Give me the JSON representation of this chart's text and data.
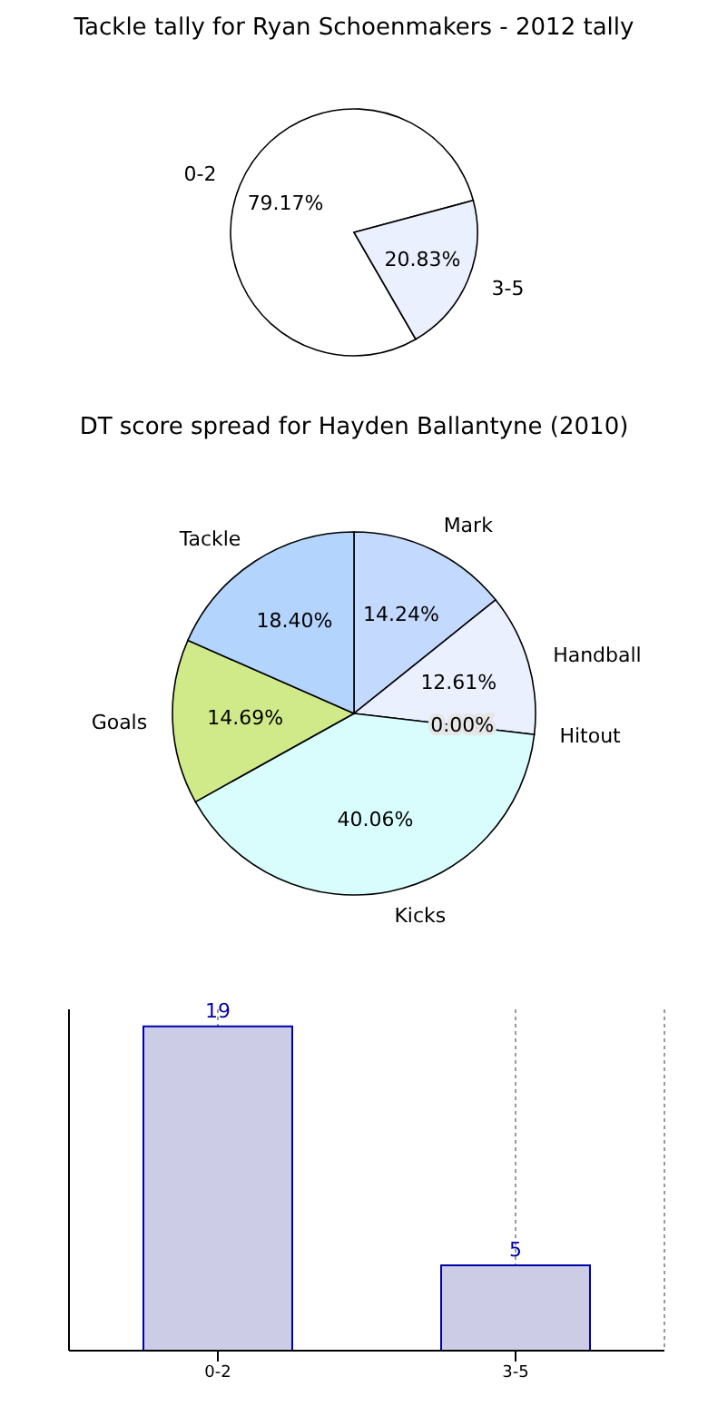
{
  "chart_data": [
    {
      "type": "pie",
      "title": "Tackle tally for Ryan Schoenmakers - 2012 tally",
      "categories": [
        "0-2",
        "3-5"
      ],
      "values": [
        79.17,
        20.83
      ],
      "colors": [
        "#ffffff",
        "#eaf0fe"
      ],
      "value_labels": [
        "79.17%",
        "20.83%"
      ]
    },
    {
      "type": "pie",
      "title": "DT score spread for Hayden Ballantyne (2010)",
      "categories": [
        "Mark",
        "Handball",
        "Hitout",
        "Kicks",
        "Goals",
        "Tackle"
      ],
      "values": [
        14.24,
        12.61,
        0.0,
        40.06,
        14.69,
        18.4
      ],
      "colors": [
        "#c4d9fe",
        "#eaf0fe",
        "#e6e6e6",
        "#d9fdfd",
        "#d0ea8a",
        "#b3d4fd"
      ],
      "value_labels": [
        "14.24%",
        "12.61%",
        "0.00%",
        "40.06%",
        "14.69%",
        "18.40%"
      ]
    },
    {
      "type": "bar",
      "categories": [
        "0-2",
        "3-5"
      ],
      "values": [
        19,
        5
      ],
      "color": "#ccccE6",
      "data_labels": true,
      "tick_labels": "x",
      "grid": "x"
    }
  ]
}
